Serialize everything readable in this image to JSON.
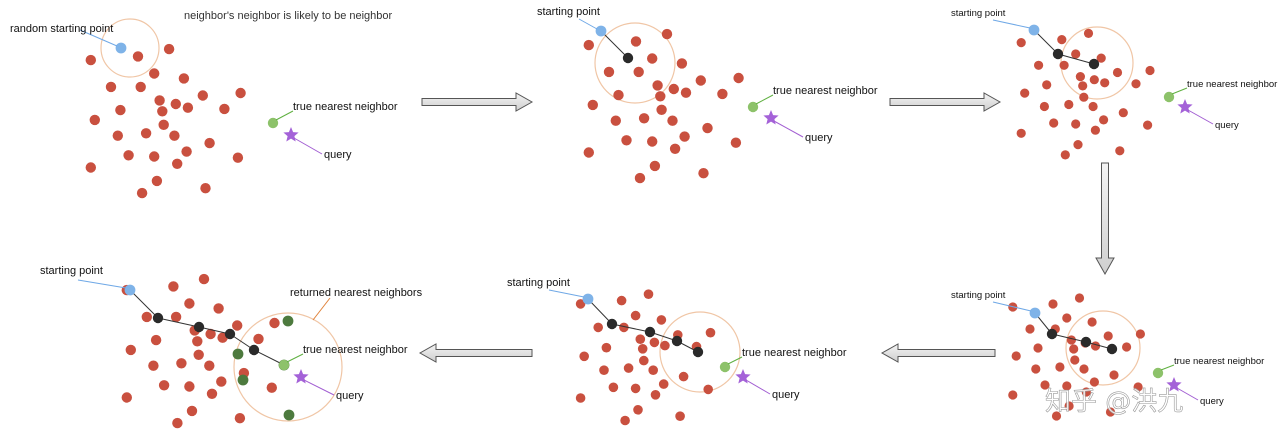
{
  "caption": "neighbor's neighbor is likely to be neighbor",
  "labels": {
    "random_start": "random starting point",
    "start": "starting point",
    "true_nn": "true nearest neighbor",
    "query": "query",
    "returned": "returned nearest neighbors"
  },
  "watermark": "知乎 @洪九",
  "colors": {
    "point": "#c9503f",
    "start": "#7fb3e8",
    "true_nn": "#8dc26a",
    "query": "#a462d8",
    "visited": "#2a2a2a",
    "returned": "#4d7a3e",
    "circle": "#f0c6a6",
    "start_pointer": "#6fa8e6",
    "true_nn_pointer": "#5fb040",
    "query_pointer": "#a25ed2",
    "returned_pointer": "#e0823a"
  },
  "panels": [
    {
      "step": 1,
      "start_label": "random starting point",
      "path_length": 0,
      "returned_count": 0
    },
    {
      "step": 2,
      "start_label": "starting point",
      "path_length": 1,
      "returned_count": 0
    },
    {
      "step": 3,
      "start_label": "starting point",
      "path_length": 2,
      "returned_count": 0
    },
    {
      "step": 4,
      "start_label": "starting point",
      "path_length": 3,
      "returned_count": 0
    },
    {
      "step": 5,
      "start_label": "starting point",
      "path_length": 4,
      "returned_count": 0
    },
    {
      "step": 6,
      "start_label": "starting point",
      "path_length": 4,
      "returned_count": 5
    }
  ]
}
